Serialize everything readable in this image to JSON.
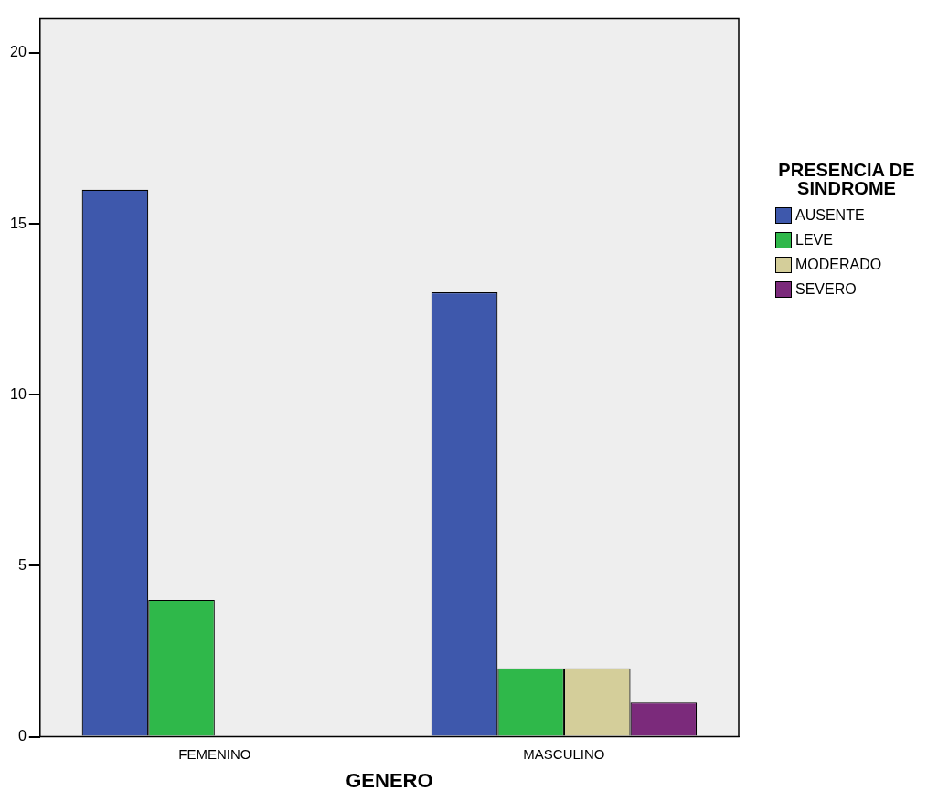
{
  "chart_data": {
    "type": "bar",
    "xlabel": "GENERO",
    "legend_title": "PRESENCIA DE SINDROME",
    "categories": [
      "FEMENINO",
      "MASCULINO"
    ],
    "series": [
      {
        "name": "AUSENTE",
        "color": "#3e58ac",
        "values": [
          16,
          13
        ]
      },
      {
        "name": "LEVE",
        "color": "#2fb84a",
        "values": [
          4,
          2
        ]
      },
      {
        "name": "MODERADO",
        "color": "#d4ce9a",
        "values": [
          null,
          2
        ]
      },
      {
        "name": "SEVERO",
        "color": "#7b2a7b",
        "values": [
          null,
          1
        ]
      }
    ],
    "ylim": [
      0,
      21
    ],
    "yticks": [
      0,
      5,
      10,
      15,
      20
    ],
    "grid": false,
    "legend": "top right"
  }
}
